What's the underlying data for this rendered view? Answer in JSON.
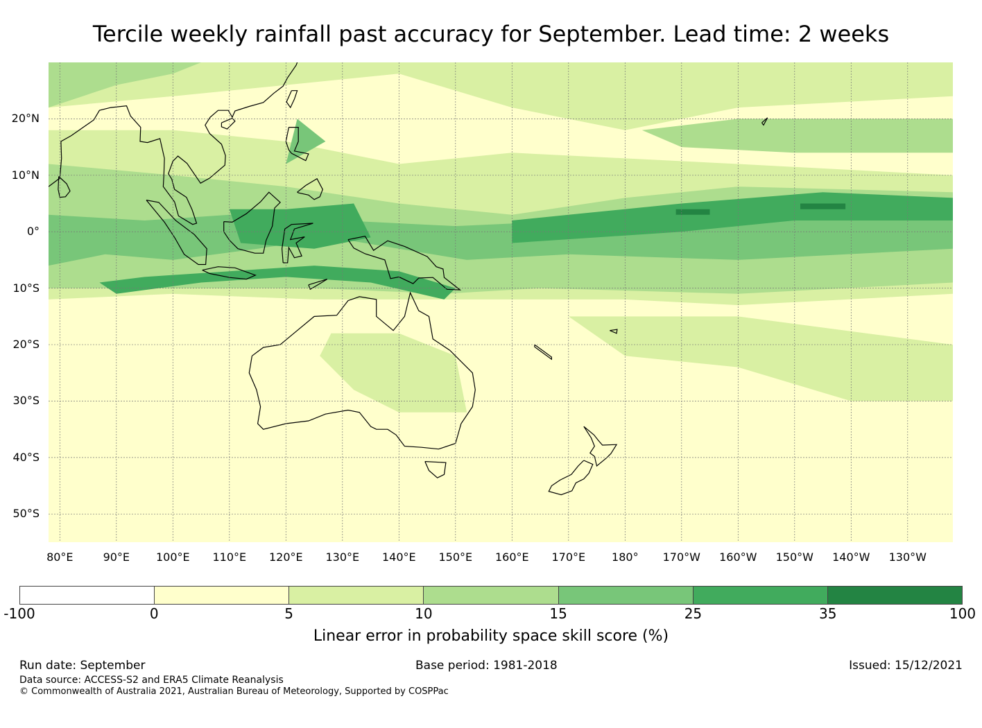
{
  "title": "Tercile weekly rainfall past accuracy for September. Lead time: 2 weeks",
  "map": {
    "lon_range": [
      78,
      238
    ],
    "lat_range": [
      -55,
      30
    ],
    "lat_labels": [
      {
        "lat": 20,
        "text": "20°N"
      },
      {
        "lat": 10,
        "text": "10°N"
      },
      {
        "lat": 0,
        "text": "0°"
      },
      {
        "lat": -10,
        "text": "10°S"
      },
      {
        "lat": -20,
        "text": "20°S"
      },
      {
        "lat": -30,
        "text": "30°S"
      },
      {
        "lat": -40,
        "text": "40°S"
      },
      {
        "lat": -50,
        "text": "50°S"
      }
    ],
    "lon_labels": [
      {
        "lon": 80,
        "text": "80°E"
      },
      {
        "lon": 90,
        "text": "90°E"
      },
      {
        "lon": 100,
        "text": "100°E"
      },
      {
        "lon": 110,
        "text": "110°E"
      },
      {
        "lon": 120,
        "text": "120°E"
      },
      {
        "lon": 130,
        "text": "130°E"
      },
      {
        "lon": 140,
        "text": "140°E"
      },
      {
        "lon": 150,
        "text": "150°E"
      },
      {
        "lon": 160,
        "text": "160°E"
      },
      {
        "lon": 170,
        "text": "170°E"
      },
      {
        "lon": 180,
        "text": "180°"
      },
      {
        "lon": 190,
        "text": "170°W"
      },
      {
        "lon": 200,
        "text": "160°W"
      },
      {
        "lon": 210,
        "text": "150°W"
      },
      {
        "lon": 220,
        "text": "140°W"
      },
      {
        "lon": 230,
        "text": "130°W"
      }
    ],
    "skill_regions": [
      {
        "class": 2,
        "points": [
          [
            78,
            -12
          ],
          [
            100,
            -11
          ],
          [
            125,
            -12
          ],
          [
            150,
            -12
          ],
          [
            180,
            -12
          ],
          [
            200,
            -13
          ],
          [
            238,
            -11
          ],
          [
            238,
            10
          ],
          [
            200,
            12
          ],
          [
            180,
            13
          ],
          [
            160,
            14
          ],
          [
            140,
            12
          ],
          [
            120,
            16
          ],
          [
            100,
            18
          ],
          [
            78,
            18
          ]
        ]
      },
      {
        "class": 2,
        "points": [
          [
            78,
            22
          ],
          [
            100,
            24
          ],
          [
            120,
            26
          ],
          [
            140,
            28
          ],
          [
            160,
            22
          ],
          [
            180,
            18
          ],
          [
            200,
            22
          ],
          [
            238,
            24
          ],
          [
            238,
            30
          ],
          [
            78,
            30
          ]
        ]
      },
      {
        "class": 2,
        "points": [
          [
            128,
            -18
          ],
          [
            140,
            -18
          ],
          [
            150,
            -22
          ],
          [
            152,
            -32
          ],
          [
            140,
            -32
          ],
          [
            132,
            -28
          ],
          [
            126,
            -22
          ]
        ]
      },
      {
        "class": 2,
        "points": [
          [
            170,
            -15
          ],
          [
            200,
            -15
          ],
          [
            238,
            -20
          ],
          [
            238,
            -30
          ],
          [
            220,
            -30
          ],
          [
            200,
            -24
          ],
          [
            180,
            -22
          ]
        ]
      },
      {
        "class": 3,
        "points": [
          [
            78,
            -10
          ],
          [
            100,
            -10
          ],
          [
            125,
            -10
          ],
          [
            148,
            -11
          ],
          [
            165,
            -10
          ],
          [
            200,
            -11
          ],
          [
            238,
            -9
          ],
          [
            238,
            7
          ],
          [
            200,
            8
          ],
          [
            180,
            6
          ],
          [
            160,
            3
          ],
          [
            140,
            5
          ],
          [
            120,
            8
          ],
          [
            100,
            10
          ],
          [
            78,
            12
          ]
        ]
      },
      {
        "class": 3,
        "points": [
          [
            78,
            22
          ],
          [
            90,
            26
          ],
          [
            100,
            28
          ],
          [
            105,
            30
          ],
          [
            78,
            30
          ]
        ]
      },
      {
        "class": 3,
        "points": [
          [
            183,
            18
          ],
          [
            200,
            20
          ],
          [
            238,
            20
          ],
          [
            238,
            14
          ],
          [
            210,
            14
          ],
          [
            190,
            15
          ]
        ]
      },
      {
        "class": 4,
        "points": [
          [
            78,
            -6
          ],
          [
            88,
            -4
          ],
          [
            100,
            -5
          ],
          [
            115,
            -3
          ],
          [
            128,
            -1
          ],
          [
            140,
            -3
          ],
          [
            152,
            -5
          ],
          [
            170,
            -4
          ],
          [
            200,
            -5
          ],
          [
            238,
            -3
          ],
          [
            238,
            6
          ],
          [
            210,
            6
          ],
          [
            190,
            4
          ],
          [
            172,
            2
          ],
          [
            150,
            1
          ],
          [
            130,
            2
          ],
          [
            110,
            3
          ],
          [
            95,
            2
          ],
          [
            78,
            3
          ]
        ]
      },
      {
        "class": 4,
        "points": [
          [
            120,
            12
          ],
          [
            122,
            20
          ],
          [
            127,
            16
          ]
        ]
      },
      {
        "class": 5,
        "points": [
          [
            87,
            -9
          ],
          [
            95,
            -8
          ],
          [
            110,
            -7
          ],
          [
            125,
            -6
          ],
          [
            140,
            -7
          ],
          [
            150,
            -10
          ],
          [
            148,
            -12
          ],
          [
            135,
            -9
          ],
          [
            120,
            -8
          ],
          [
            105,
            -9
          ],
          [
            90,
            -11
          ]
        ]
      },
      {
        "class": 5,
        "points": [
          [
            110,
            4
          ],
          [
            120,
            4
          ],
          [
            132,
            5
          ],
          [
            135,
            -1
          ],
          [
            125,
            -3
          ],
          [
            112,
            -2
          ]
        ]
      },
      {
        "class": 5,
        "points": [
          [
            160,
            -2
          ],
          [
            175,
            -1
          ],
          [
            190,
            0
          ],
          [
            210,
            2
          ],
          [
            238,
            2
          ],
          [
            238,
            6
          ],
          [
            215,
            7
          ],
          [
            190,
            5
          ],
          [
            170,
            3
          ],
          [
            160,
            2
          ]
        ]
      },
      {
        "class": 6,
        "points": [
          [
            189,
            3
          ],
          [
            195,
            3
          ],
          [
            195,
            4
          ],
          [
            189,
            4
          ]
        ]
      },
      {
        "class": 6,
        "points": [
          [
            211,
            4
          ],
          [
            219,
            4
          ],
          [
            219,
            5
          ],
          [
            211,
            5
          ]
        ]
      }
    ]
  },
  "colorbar": {
    "ticks": [
      "-100",
      "0",
      "5",
      "10",
      "15",
      "25",
      "35",
      "100"
    ],
    "colors": [
      "#ffffff",
      "#ffffcc",
      "#d9f0a3",
      "#addd8e",
      "#78c679",
      "#41ab5d",
      "#238443"
    ],
    "label": "Linear error in probability space skill score (%)"
  },
  "footer": {
    "run_date": "Run date: September",
    "base_period": "Base period: 1981-2018",
    "issued": "Issued: 15/12/2021",
    "data_source": "Data source: ACCESS-S2 and ERA5 Climate Reanalysis",
    "copyright": "© Commonwealth of Australia 2021, Australian Bureau of Meteorology, Supported by COSPPac"
  }
}
